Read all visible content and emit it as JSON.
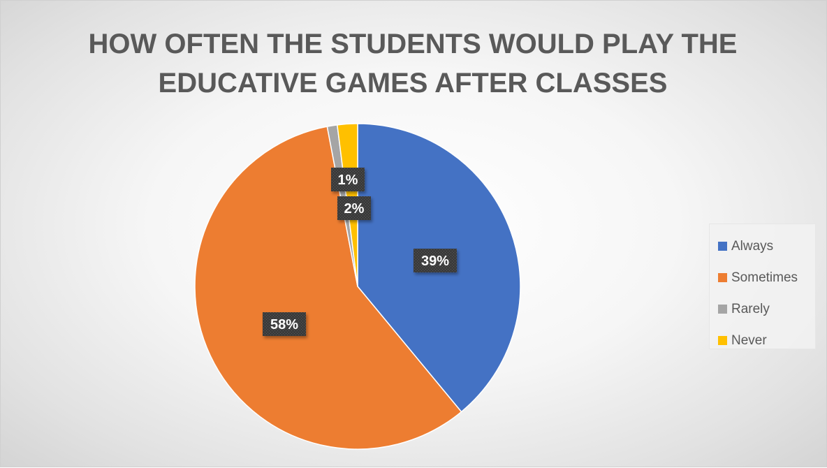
{
  "chart_data": {
    "type": "pie",
    "title_lines": [
      "HOW OFTEN THE STUDENTS WOULD PLAY THE",
      "EDUCATIVE GAMES AFTER CLASSES"
    ],
    "categories": [
      "Always",
      "Sometimes",
      "Rarely",
      "Never"
    ],
    "values": [
      39,
      58,
      1,
      2
    ],
    "labels": [
      "39%",
      "58%",
      "1%",
      "2%"
    ],
    "colors": [
      "#4472C4",
      "#ED7D31",
      "#A5A5A5",
      "#FFC000"
    ],
    "legend_position": "right",
    "data_label_style": "dark patterned callout boxes"
  }
}
